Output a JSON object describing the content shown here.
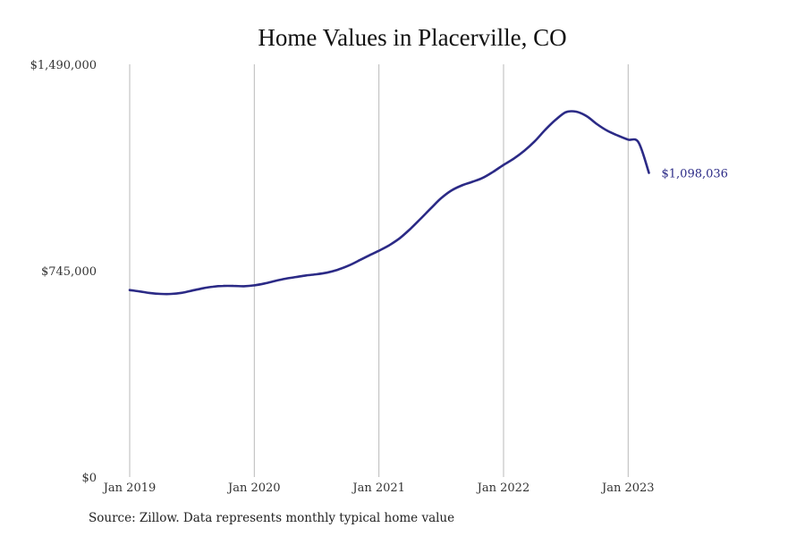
{
  "chart_data": {
    "type": "line",
    "title": "Home Values in Placerville, CO",
    "xlabel": "",
    "ylabel": "",
    "ylim": [
      0,
      1490000
    ],
    "xlim": [
      "2019-01",
      "2023-12"
    ],
    "y_tick_labels": [
      "$0",
      "$745,000",
      "$1,490,000"
    ],
    "y_tick_values": [
      0,
      745000,
      1490000
    ],
    "x_tick_labels": [
      "Jan 2019",
      "Jan 2020",
      "Jan 2021",
      "Jan 2022",
      "Jan 2023"
    ],
    "x_tick_values": [
      "2019-01",
      "2020-01",
      "2021-01",
      "2022-01",
      "2023-01"
    ],
    "grid": "vertical",
    "end_label": "$1,098,036",
    "line_color": "#2b2a86",
    "series": [
      {
        "x": [
          "2019-01",
          "2019-02",
          "2019-03",
          "2019-04",
          "2019-05",
          "2019-06",
          "2019-07",
          "2019-08",
          "2019-09",
          "2019-10",
          "2019-11",
          "2019-12",
          "2020-01",
          "2020-02",
          "2020-03",
          "2020-04",
          "2020-05",
          "2020-06",
          "2020-07",
          "2020-08",
          "2020-09",
          "2020-10",
          "2020-11",
          "2020-12",
          "2021-01",
          "2021-02",
          "2021-03",
          "2021-04",
          "2021-05",
          "2021-06",
          "2021-07",
          "2021-08",
          "2021-09",
          "2021-10",
          "2021-11",
          "2021-12",
          "2022-01",
          "2022-02",
          "2022-03",
          "2022-04",
          "2022-05",
          "2022-06",
          "2022-07",
          "2022-08",
          "2022-09",
          "2022-10",
          "2022-11",
          "2022-12",
          "2023-01",
          "2023-02",
          "2023-03"
        ],
        "values": [
          675000,
          670000,
          664000,
          661000,
          661000,
          665000,
          673000,
          681000,
          687000,
          690000,
          690000,
          689000,
          692000,
          699000,
          708000,
          716000,
          722000,
          728000,
          732000,
          738000,
          748000,
          762000,
          780000,
          799000,
          817000,
          837000,
          862000,
          895000,
          932000,
          970000,
          1007000,
          1035000,
          1053000,
          1066000,
          1080000,
          1102000,
          1127000,
          1150000,
          1178000,
          1212000,
          1253000,
          1289000,
          1317000,
          1319000,
          1303000,
          1274000,
          1250000,
          1233000,
          1218000,
          1208000,
          1098036
        ]
      }
    ]
  },
  "source_note": "Source: Zillow. Data represents monthly typical home value"
}
